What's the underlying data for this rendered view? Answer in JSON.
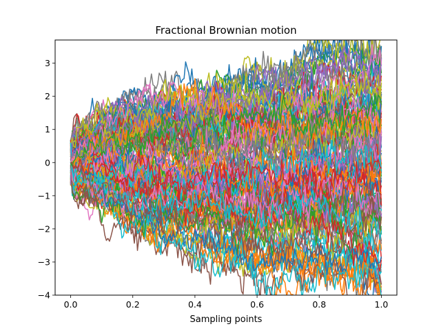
{
  "chart_data": {
    "type": "line",
    "title": "Fractional Brownian motion",
    "xlabel": "Sampling points",
    "ylabel": "",
    "xlim": [
      -0.05,
      1.05
    ],
    "ylim": [
      -4,
      3.7
    ],
    "x_ticks": [
      0.0,
      0.2,
      0.4,
      0.6,
      0.8,
      1.0
    ],
    "x_tick_labels": [
      "0.0",
      "0.2",
      "0.4",
      "0.6",
      "0.8",
      "1.0"
    ],
    "y_ticks": [
      -4,
      -3,
      -2,
      -1,
      0,
      1,
      2,
      3
    ],
    "y_tick_labels": [
      "−4",
      "−3",
      "−2",
      "−1",
      "0",
      "1",
      "2",
      "3"
    ],
    "grid": false,
    "legend": "none",
    "n_points": 201,
    "x_range": [
      0.0,
      1.0
    ],
    "palette": [
      "#1f77b4",
      "#ff7f0e",
      "#2ca02c",
      "#d62728",
      "#9467bd",
      "#8c564b",
      "#e377c2",
      "#7f7f7f",
      "#bcbd22",
      "#17becf"
    ],
    "series_count": 120,
    "envelope": {
      "x": [
        0.0,
        0.2,
        0.4,
        0.6,
        0.8,
        1.0
      ],
      "upper": [
        0.8,
        2.1,
        2.3,
        2.6,
        3.3,
        3.4
      ],
      "lower": [
        -0.8,
        -2.1,
        -2.7,
        -3.3,
        -3.3,
        -3.65
      ]
    },
    "series_sample": [
      {
        "color": "#1f77b4",
        "x": [
          0.0,
          0.2,
          0.4,
          0.6,
          0.8,
          0.9,
          1.0
        ],
        "y": [
          0.0,
          -1.7,
          -2.3,
          -3.0,
          -2.8,
          -3.1,
          -2.9
        ]
      },
      {
        "color": "#7f7f7f",
        "x": [
          0.0,
          0.2,
          0.4,
          0.6,
          0.78,
          0.9,
          1.0
        ],
        "y": [
          0.0,
          0.9,
          1.3,
          1.9,
          3.2,
          2.6,
          1.8
        ]
      },
      {
        "color": "#9467bd",
        "x": [
          0.0,
          0.2,
          0.4,
          0.6,
          0.8,
          0.9,
          1.0
        ],
        "y": [
          0.0,
          1.0,
          1.5,
          2.0,
          2.5,
          2.9,
          3.0
        ]
      },
      {
        "color": "#e377c2",
        "x": [
          0.0,
          0.2,
          0.4,
          0.6,
          0.8,
          0.9,
          1.0
        ],
        "y": [
          0.0,
          1.8,
          2.0,
          1.6,
          1.8,
          2.4,
          3.3
        ]
      },
      {
        "color": "#bcbd22",
        "x": [
          0.0,
          0.2,
          0.4,
          0.6,
          0.8,
          0.9,
          1.0
        ],
        "y": [
          0.0,
          0.8,
          1.4,
          1.8,
          2.0,
          2.3,
          2.3
        ]
      },
      {
        "color": "#ff7f0e",
        "x": [
          0.0,
          0.2,
          0.4,
          0.6,
          0.8,
          0.9,
          1.0
        ],
        "y": [
          0.0,
          1.1,
          1.9,
          1.2,
          0.8,
          1.3,
          1.5
        ]
      },
      {
        "color": "#17becf",
        "x": [
          0.0,
          0.2,
          0.4,
          0.6,
          0.8,
          0.9,
          1.0
        ],
        "y": [
          0.0,
          -1.1,
          -1.0,
          -1.6,
          -1.2,
          -1.7,
          -1.9
        ]
      },
      {
        "color": "#d62728",
        "x": [
          0.0,
          0.2,
          0.4,
          0.6,
          0.8,
          0.9,
          1.0
        ],
        "y": [
          0.0,
          -0.5,
          -0.6,
          -0.2,
          -0.8,
          -0.6,
          -0.5
        ]
      },
      {
        "color": "#2ca02c",
        "x": [
          0.0,
          0.2,
          0.4,
          0.6,
          0.8,
          0.9,
          1.0
        ],
        "y": [
          0.0,
          0.9,
          1.0,
          1.5,
          1.2,
          1.1,
          1.6
        ]
      },
      {
        "color": "#8c564b",
        "x": [
          0.0,
          0.2,
          0.4,
          0.6,
          0.8,
          0.9,
          1.0
        ],
        "y": [
          0.0,
          -1.4,
          -1.8,
          -2.2,
          -2.6,
          -2.2,
          -1.6
        ]
      }
    ]
  }
}
